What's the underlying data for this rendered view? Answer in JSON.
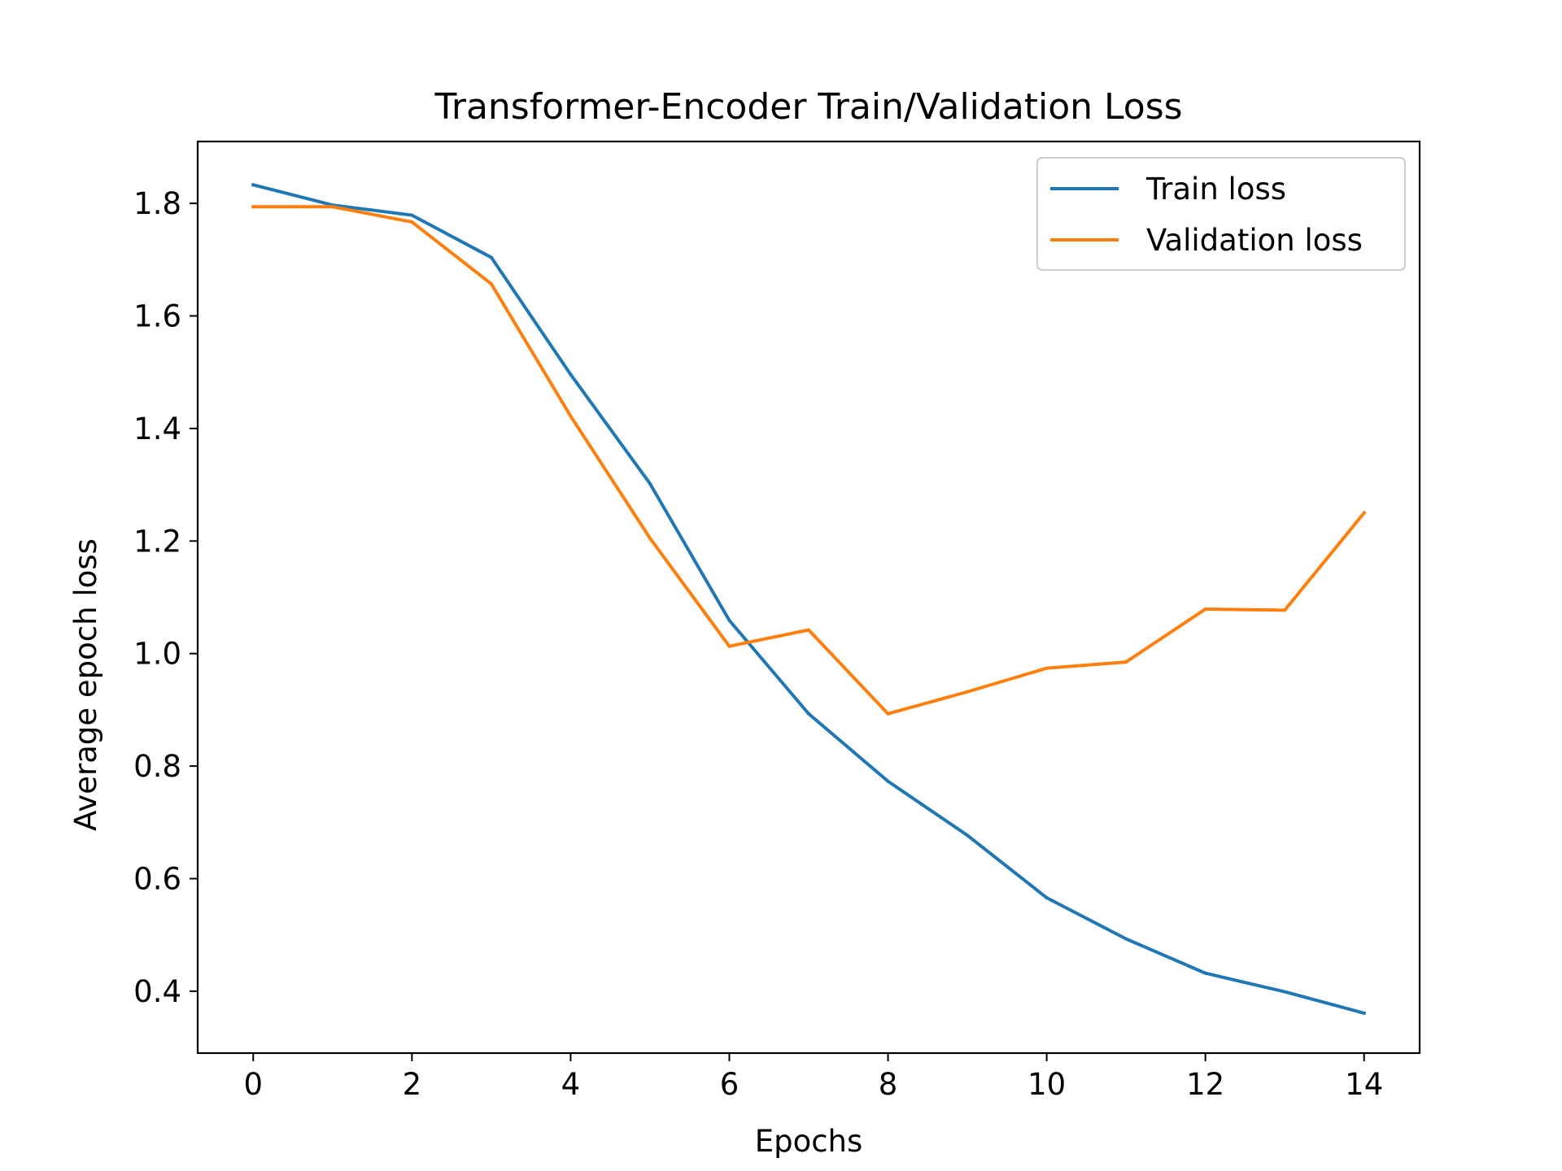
{
  "chart_data": {
    "type": "line",
    "title": "Transformer-Encoder Train/Validation Loss",
    "xlabel": "Epochs",
    "ylabel": "Average epoch loss",
    "xlim": [
      -0.7,
      14.7
    ],
    "ylim": [
      0.29,
      1.91
    ],
    "xticks": [
      0,
      2,
      4,
      6,
      8,
      10,
      12,
      14
    ],
    "xtick_labels": [
      "0",
      "2",
      "4",
      "6",
      "8",
      "10",
      "12",
      "14"
    ],
    "yticks": [
      0.4,
      0.6,
      0.8,
      1.0,
      1.2,
      1.4,
      1.6,
      1.8
    ],
    "ytick_labels": [
      "0.4",
      "0.6",
      "0.8",
      "1.0",
      "1.2",
      "1.4",
      "1.6",
      "1.8"
    ],
    "grid": false,
    "legend_position": "top-right",
    "x": [
      0,
      1,
      2,
      3,
      4,
      5,
      6,
      7,
      8,
      9,
      10,
      11,
      12,
      13,
      14
    ],
    "series": [
      {
        "name": "Train loss",
        "color": "#1f77b4",
        "values": [
          1.833,
          1.797,
          1.779,
          1.704,
          1.496,
          1.302,
          1.059,
          0.893,
          0.773,
          0.677,
          0.566,
          0.493,
          0.432,
          0.399,
          0.361
        ]
      },
      {
        "name": "Validation loss",
        "color": "#ff7f0e",
        "values": [
          1.794,
          1.794,
          1.767,
          1.657,
          1.422,
          1.205,
          1.013,
          1.042,
          0.893,
          0.932,
          0.974,
          0.985,
          1.079,
          1.077,
          1.25
        ]
      }
    ]
  }
}
